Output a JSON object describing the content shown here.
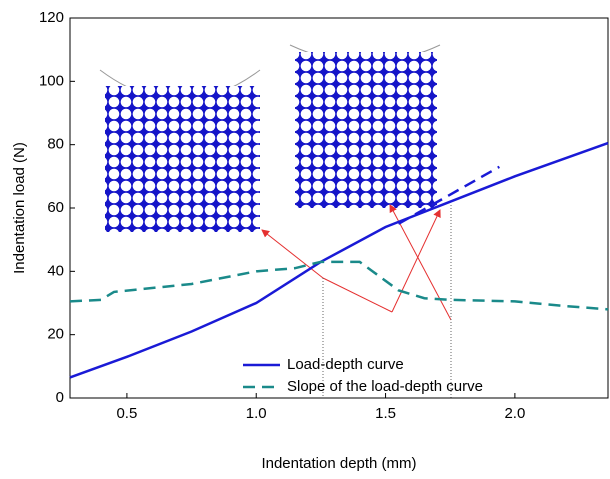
{
  "chart_data": {
    "type": "line",
    "xlabel": "Indentation depth (mm)",
    "ylabel": "Indentation load (N)",
    "xlim": [
      0.28,
      2.36
    ],
    "ylim": [
      0,
      120
    ],
    "xticks": [
      0.5,
      {
        "value": 1,
        "label": "1.0"
      },
      1.5,
      {
        "value": 2,
        "label": "2.0"
      }
    ],
    "yticks": [
      0,
      20,
      40,
      60,
      80,
      100,
      120
    ],
    "legend": "lower-center",
    "series": [
      {
        "name": "Load-depth curve",
        "color": "#1a1ad6",
        "style": "solid",
        "x": [
          0.28,
          0.5,
          0.75,
          1.0,
          1.25,
          1.5,
          1.75,
          2.0,
          2.36
        ],
        "values": [
          6.5,
          13,
          21,
          30,
          43,
          54,
          62,
          70,
          80.5
        ]
      },
      {
        "name": "Slope of the load-depth curve",
        "color": "#1a8a8a",
        "style": "dashed",
        "x": [
          0.28,
          0.4,
          0.45,
          0.75,
          1.0,
          1.15,
          1.25,
          1.4,
          1.45,
          1.55,
          1.65,
          1.75,
          2.0,
          2.2,
          2.36
        ],
        "values": [
          30.5,
          31,
          33.5,
          36,
          40,
          41,
          43,
          43,
          40,
          34,
          31.5,
          31,
          30.5,
          29,
          28
        ]
      },
      {
        "color": "#1a1ad6",
        "style": "dashed",
        "x": [
          1.55,
          1.94
        ],
        "values": [
          55,
          73
        ]
      }
    ]
  }
}
